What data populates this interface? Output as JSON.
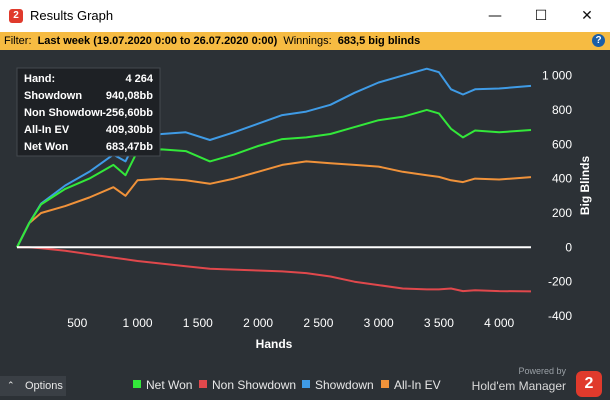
{
  "window": {
    "title": "Results Graph",
    "minimize_glyph": "—",
    "maximize_glyph": "☐",
    "close_glyph": "✕",
    "app_icon_text": "2"
  },
  "filter": {
    "prefix": "Filter:",
    "range": "Last week (19.07.2020 0:00 to 26.07.2020 0:00)",
    "winnings_label": "Winnings:",
    "winnings_value": "683,5 big blinds",
    "help_glyph": "?"
  },
  "stats_box": {
    "rows": [
      {
        "label": "Hand:",
        "value": "4 264"
      },
      {
        "label": "Showdown",
        "value": "940,08bb"
      },
      {
        "label": "Non Showdown",
        "value": "-256,60bb"
      },
      {
        "label": "All-In EV",
        "value": "409,30bb"
      },
      {
        "label": "Net Won",
        "value": "683,47bb"
      }
    ]
  },
  "options_button": {
    "label": "Options",
    "icon": "chevron-up-icon"
  },
  "branding": {
    "powered_by": "Powered by",
    "product": "Hold'em Manager",
    "logo_text": "2"
  },
  "colors": {
    "background": "#2c3136",
    "net_won": "#33e83a",
    "non_showdown": "#e0484c",
    "showdown": "#3f9be6",
    "all_in_ev": "#f0923a",
    "zero_line": "#ffffff",
    "filter_bar": "#f6bb42"
  },
  "chart_data": {
    "type": "line",
    "xlabel": "Hands",
    "ylabel": "Big Blinds",
    "xlim": [
      0,
      4264
    ],
    "ylim": [
      -400,
      1050
    ],
    "x_ticks": [
      500,
      1000,
      1500,
      2000,
      2500,
      3000,
      3500,
      4000
    ],
    "x_tick_labels": [
      "500",
      "1 000",
      "1 500",
      "2 000",
      "2 500",
      "3 000",
      "3 500",
      "4 000"
    ],
    "y_ticks": [
      -400,
      -200,
      0,
      200,
      400,
      600,
      800,
      1000
    ],
    "y_tick_labels": [
      "-400",
      "-200",
      "0",
      "200",
      "400",
      "600",
      "800",
      "1 000"
    ],
    "grid": false,
    "legend_position": "bottom",
    "x": [
      0,
      100,
      200,
      400,
      600,
      800,
      900,
      1000,
      1200,
      1400,
      1600,
      1800,
      2000,
      2200,
      2400,
      2600,
      2800,
      3000,
      3200,
      3400,
      3500,
      3600,
      3700,
      3800,
      4000,
      4264
    ],
    "series": [
      {
        "name": "Net Won",
        "values": [
          0,
          140,
          250,
          340,
          400,
          480,
          420,
          560,
          570,
          560,
          500,
          540,
          590,
          630,
          640,
          660,
          700,
          740,
          760,
          800,
          780,
          690,
          640,
          680,
          670,
          683
        ]
      },
      {
        "name": "Non Showdown",
        "values": [
          0,
          0,
          -5,
          -20,
          -40,
          -60,
          -70,
          -80,
          -95,
          -110,
          -125,
          -130,
          -135,
          -140,
          -150,
          -170,
          -200,
          -220,
          -240,
          -245,
          -245,
          -240,
          -255,
          -250,
          -255,
          -257
        ]
      },
      {
        "name": "Showdown",
        "values": [
          0,
          140,
          255,
          360,
          440,
          540,
          500,
          640,
          660,
          670,
          625,
          670,
          720,
          770,
          790,
          830,
          900,
          960,
          1000,
          1040,
          1020,
          920,
          890,
          920,
          925,
          940
        ]
      },
      {
        "name": "All-In EV",
        "values": [
          0,
          140,
          200,
          240,
          290,
          350,
          300,
          390,
          400,
          390,
          370,
          400,
          440,
          480,
          500,
          490,
          480,
          470,
          440,
          420,
          410,
          390,
          380,
          400,
          395,
          409
        ]
      }
    ]
  }
}
